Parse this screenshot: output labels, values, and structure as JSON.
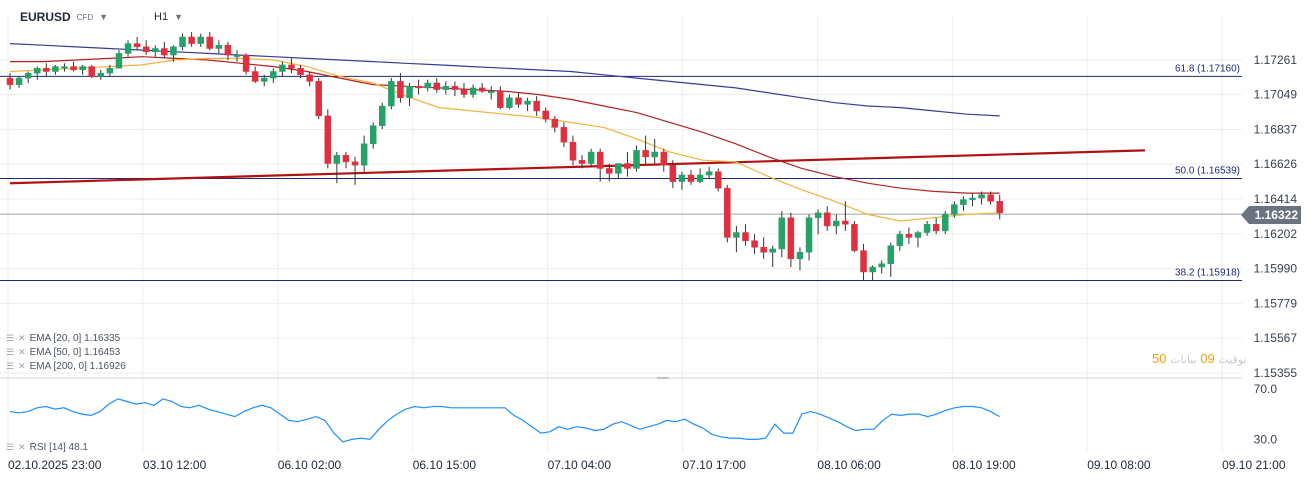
{
  "header": {
    "symbol": "EURUSD",
    "badge": "CFD",
    "timeframe": "H1"
  },
  "indicators": [
    {
      "label": "EMA  [20,  0]  1.16335",
      "color": "#f2b33d"
    },
    {
      "label": "EMA  [50,  0]  1.16453",
      "color": "#b22222"
    },
    {
      "label": "EMA  [200,  0]  1.16926",
      "color": "#3b3b98"
    }
  ],
  "rsi_label": "RSI  [14]  48.1",
  "current_price": "1.16322",
  "arabic_note": {
    "prefix": "توقيت",
    "num1": "09",
    "mid": "بيانات",
    "num2": "50"
  },
  "colors": {
    "up": "#26a269",
    "down": "#e0303f",
    "grid": "#ededed",
    "fib": "#1e2a78",
    "trend": "#b01212",
    "rsi": "#1e90ff"
  },
  "chart_data": {
    "type": "candlestick",
    "title": "EURUSD H1",
    "price_ticks": [
      "1.17261",
      "1.17049",
      "1.16837",
      "1.16626",
      "1.16414",
      "1.16202",
      "1.15990",
      "1.15779",
      "1.15567",
      "1.15355"
    ],
    "price_tick_values": [
      1.17261,
      1.17049,
      1.16837,
      1.16626,
      1.16414,
      1.16202,
      1.1599,
      1.15779,
      1.15567,
      1.15355
    ],
    "ylim": [
      1.15355,
      1.17473
    ],
    "time_labels": [
      "02.10.2025  23:00",
      "03.10  12:00",
      "06.10  02:00",
      "06.10  15:00",
      "07.10  04:00",
      "07.10  17:00",
      "08.10  06:00",
      "08.10  19:00",
      "09.10  08:00",
      "09.10  21:00"
    ],
    "fib_levels": [
      {
        "label": "61.8 (1.17160)",
        "value": 1.1716
      },
      {
        "label": "50.0 (1.16539)",
        "value": 1.16539
      },
      {
        "label": "38.2 (1.15918)",
        "value": 1.15918
      }
    ],
    "last_price": 1.16322,
    "trendline": [
      [
        0,
        1.1651
      ],
      [
        125,
        1.1671
      ]
    ],
    "candles": [
      [
        1.1715,
        1.1718,
        1.1708,
        1.1711
      ],
      [
        1.1711,
        1.1716,
        1.1709,
        1.1715
      ],
      [
        1.1715,
        1.1719,
        1.1712,
        1.1718
      ],
      [
        1.1718,
        1.1722,
        1.1714,
        1.1721
      ],
      [
        1.1721,
        1.1724,
        1.1716,
        1.1719
      ],
      [
        1.1719,
        1.1723,
        1.1717,
        1.1722
      ],
      [
        1.1722,
        1.1724,
        1.1719,
        1.1722
      ],
      [
        1.1722,
        1.1725,
        1.1719,
        1.172
      ],
      [
        1.172,
        1.1723,
        1.1717,
        1.1722
      ],
      [
        1.1722,
        1.1723,
        1.1715,
        1.1716
      ],
      [
        1.1716,
        1.172,
        1.1714,
        1.1718
      ],
      [
        1.1718,
        1.1723,
        1.1716,
        1.1721
      ],
      [
        1.1721,
        1.1732,
        1.1721,
        1.173
      ],
      [
        1.173,
        1.1738,
        1.1728,
        1.1736
      ],
      [
        1.1736,
        1.174,
        1.1732,
        1.1734
      ],
      [
        1.1734,
        1.1738,
        1.1729,
        1.1731
      ],
      [
        1.1731,
        1.1735,
        1.1728,
        1.1733
      ],
      [
        1.1733,
        1.1737,
        1.1727,
        1.1729
      ],
      [
        1.1729,
        1.1735,
        1.1725,
        1.1734
      ],
      [
        1.1734,
        1.1742,
        1.1732,
        1.174
      ],
      [
        1.174,
        1.1743,
        1.1734,
        1.1736
      ],
      [
        1.1736,
        1.1742,
        1.1734,
        1.174
      ],
      [
        1.174,
        1.1743,
        1.1732,
        1.1733
      ],
      [
        1.1733,
        1.1738,
        1.173,
        1.1735
      ],
      [
        1.1735,
        1.1737,
        1.1726,
        1.1729
      ],
      [
        1.1729,
        1.1732,
        1.1725,
        1.1729
      ],
      [
        1.1729,
        1.173,
        1.1717,
        1.1719
      ],
      [
        1.1719,
        1.1722,
        1.1712,
        1.1713
      ],
      [
        1.1713,
        1.1717,
        1.171,
        1.1715
      ],
      [
        1.1715,
        1.1721,
        1.1712,
        1.1719
      ],
      [
        1.1719,
        1.1725,
        1.1716,
        1.1723
      ],
      [
        1.1723,
        1.1727,
        1.1718,
        1.1721
      ],
      [
        1.1721,
        1.1723,
        1.1715,
        1.1717
      ],
      [
        1.1717,
        1.1719,
        1.171,
        1.1713
      ],
      [
        1.1713,
        1.1715,
        1.169,
        1.1692
      ],
      [
        1.1692,
        1.1696,
        1.166,
        1.1663
      ],
      [
        1.1663,
        1.167,
        1.1651,
        1.1668
      ],
      [
        1.1668,
        1.167,
        1.166,
        1.1664
      ],
      [
        1.1664,
        1.1667,
        1.165,
        1.1662
      ],
      [
        1.1662,
        1.168,
        1.1658,
        1.1675
      ],
      [
        1.1675,
        1.1688,
        1.1672,
        1.1686
      ],
      [
        1.1686,
        1.17,
        1.1684,
        1.1698
      ],
      [
        1.1698,
        1.1715,
        1.1696,
        1.1713
      ],
      [
        1.1713,
        1.1718,
        1.17,
        1.1703
      ],
      [
        1.1703,
        1.1712,
        1.1698,
        1.171
      ],
      [
        1.171,
        1.1714,
        1.1705,
        1.1709
      ],
      [
        1.1709,
        1.1714,
        1.1707,
        1.1712
      ],
      [
        1.1712,
        1.1715,
        1.1706,
        1.1708
      ],
      [
        1.1708,
        1.1713,
        1.1705,
        1.171
      ],
      [
        1.171,
        1.1713,
        1.1704,
        1.1708
      ],
      [
        1.1708,
        1.1712,
        1.1703,
        1.1705
      ],
      [
        1.1705,
        1.1711,
        1.1703,
        1.1709
      ],
      [
        1.1709,
        1.1712,
        1.1706,
        1.1707
      ],
      [
        1.1707,
        1.171,
        1.1702,
        1.1707
      ],
      [
        1.1707,
        1.171,
        1.1696,
        1.1697
      ],
      [
        1.1697,
        1.1705,
        1.1696,
        1.1703
      ],
      [
        1.1703,
        1.1706,
        1.1697,
        1.1699
      ],
      [
        1.1699,
        1.1703,
        1.1695,
        1.1701
      ],
      [
        1.1701,
        1.1704,
        1.1692,
        1.1695
      ],
      [
        1.1695,
        1.1697,
        1.1688,
        1.169
      ],
      [
        1.169,
        1.1692,
        1.1682,
        1.1685
      ],
      [
        1.1685,
        1.1688,
        1.1673,
        1.1676
      ],
      [
        1.1676,
        1.168,
        1.1662,
        1.1665
      ],
      [
        1.1665,
        1.1668,
        1.166,
        1.1663
      ],
      [
        1.1663,
        1.1672,
        1.1661,
        1.167
      ],
      [
        1.167,
        1.1672,
        1.1652,
        1.166
      ],
      [
        1.166,
        1.1663,
        1.1652,
        1.1657
      ],
      [
        1.1657,
        1.1663,
        1.1654,
        1.1663
      ],
      [
        1.1663,
        1.167,
        1.1655,
        1.166
      ],
      [
        1.166,
        1.1674,
        1.1658,
        1.1671
      ],
      [
        1.1671,
        1.168,
        1.1662,
        1.1667
      ],
      [
        1.1667,
        1.1678,
        1.1663,
        1.167
      ],
      [
        1.167,
        1.1672,
        1.1658,
        1.1662
      ],
      [
        1.1662,
        1.1665,
        1.1648,
        1.1652
      ],
      [
        1.1652,
        1.1658,
        1.1647,
        1.1656
      ],
      [
        1.1656,
        1.1659,
        1.165,
        1.1652
      ],
      [
        1.1652,
        1.166,
        1.1651,
        1.1656
      ],
      [
        1.1656,
        1.1661,
        1.1654,
        1.1658
      ],
      [
        1.1658,
        1.166,
        1.1646,
        1.1648
      ],
      [
        1.1648,
        1.165,
        1.1615,
        1.1618
      ],
      [
        1.1618,
        1.1625,
        1.1609,
        1.1621
      ],
      [
        1.1621,
        1.1626,
        1.1613,
        1.1616
      ],
      [
        1.1616,
        1.162,
        1.1608,
        1.1612
      ],
      [
        1.1612,
        1.1618,
        1.1605,
        1.1609
      ],
      [
        1.1609,
        1.1613,
        1.16,
        1.1611
      ],
      [
        1.1611,
        1.1634,
        1.1606,
        1.163
      ],
      [
        1.163,
        1.1633,
        1.16,
        1.1605
      ],
      [
        1.1605,
        1.1612,
        1.1598,
        1.1609
      ],
      [
        1.1609,
        1.1632,
        1.1604,
        1.163
      ],
      [
        1.163,
        1.1635,
        1.162,
        1.1633
      ],
      [
        1.1633,
        1.1637,
        1.1622,
        1.1625
      ],
      [
        1.1625,
        1.1632,
        1.162,
        1.1628
      ],
      [
        1.1628,
        1.164,
        1.1622,
        1.1626
      ],
      [
        1.1626,
        1.1628,
        1.1609,
        1.161
      ],
      [
        1.161,
        1.1614,
        1.1592,
        1.1597
      ],
      [
        1.1597,
        1.1601,
        1.1592,
        1.16
      ],
      [
        1.16,
        1.1604,
        1.1596,
        1.1602
      ],
      [
        1.1602,
        1.1615,
        1.1594,
        1.1613
      ],
      [
        1.1613,
        1.1622,
        1.161,
        1.162
      ],
      [
        1.162,
        1.1624,
        1.1614,
        1.1618
      ],
      [
        1.1618,
        1.1622,
        1.1612,
        1.1621
      ],
      [
        1.1621,
        1.1628,
        1.1619,
        1.1626
      ],
      [
        1.1626,
        1.163,
        1.162,
        1.1622
      ],
      [
        1.1622,
        1.1634,
        1.162,
        1.1632
      ],
      [
        1.1632,
        1.164,
        1.163,
        1.1638
      ],
      [
        1.1638,
        1.1643,
        1.1634,
        1.1641
      ],
      [
        1.1641,
        1.1645,
        1.1637,
        1.1642
      ],
      [
        1.1642,
        1.1646,
        1.1638,
        1.1644
      ],
      [
        1.1644,
        1.1646,
        1.1638,
        1.164
      ],
      [
        1.164,
        1.1644,
        1.1629,
        1.1633
      ]
    ],
    "ema20": [
      1.1719,
      1.172,
      1.1721,
      1.1722,
      1.1723,
      1.1726,
      1.1727,
      1.1727,
      1.1726,
      1.1722,
      1.1716,
      1.1712,
      1.1704,
      1.1697,
      1.1695,
      1.1693,
      1.1691,
      1.1688,
      1.1685,
      1.1678,
      1.167,
      1.1665,
      1.1664,
      1.1655,
      1.1647,
      1.164,
      1.1632,
      1.1628,
      1.163,
      1.1632,
      1.1633
    ],
    "ema50": [
      1.1725,
      1.1725,
      1.1726,
      1.1727,
      1.1728,
      1.1727,
      1.1726,
      1.1724,
      1.1722,
      1.1719,
      1.1715,
      1.1711,
      1.171,
      1.1709,
      1.1708,
      1.1707,
      1.1705,
      1.1702,
      1.1698,
      1.1694,
      1.1688,
      1.1682,
      1.1675,
      1.1667,
      1.166,
      1.1655,
      1.1651,
      1.1648,
      1.1646,
      1.1645,
      1.1645
    ],
    "ema200": [
      1.1736,
      1.1735,
      1.1734,
      1.1733,
      1.1732,
      1.1731,
      1.173,
      1.1729,
      1.1728,
      1.1727,
      1.1726,
      1.1725,
      1.1724,
      1.1723,
      1.1722,
      1.1721,
      1.172,
      1.1719,
      1.1717,
      1.1715,
      1.1713,
      1.1711,
      1.1709,
      1.1706,
      1.1703,
      1.17,
      1.1698,
      1.1697,
      1.1695,
      1.1693,
      1.1692
    ],
    "rsi": [
      52,
      51,
      52,
      55,
      56,
      54,
      55,
      52,
      50,
      49,
      52,
      58,
      62,
      60,
      58,
      59,
      57,
      62,
      60,
      56,
      55,
      57,
      54,
      52,
      50,
      48,
      52,
      55,
      57,
      55,
      50,
      45,
      44,
      46,
      48,
      45,
      35,
      28,
      30,
      31,
      30,
      38,
      45,
      50,
      54,
      56,
      55,
      56,
      56,
      55,
      55,
      55,
      55,
      55,
      55,
      55,
      49,
      45,
      40,
      35,
      36,
      40,
      38,
      40,
      39,
      37,
      38,
      42,
      44,
      41,
      38,
      40,
      42,
      45,
      44,
      46,
      42,
      39,
      34,
      32,
      31,
      31,
      30,
      30,
      31,
      42,
      35,
      35,
      50,
      52,
      50,
      47,
      44,
      40,
      37,
      38,
      38,
      45,
      50,
      49,
      50,
      50,
      48,
      50,
      53,
      55,
      56,
      56,
      55,
      52,
      48
    ],
    "rsi_ylim": [
      20,
      77
    ],
    "rsi_ticks": [
      "70.0",
      "30.0"
    ],
    "rsi_tick_values": [
      70,
      30
    ]
  }
}
